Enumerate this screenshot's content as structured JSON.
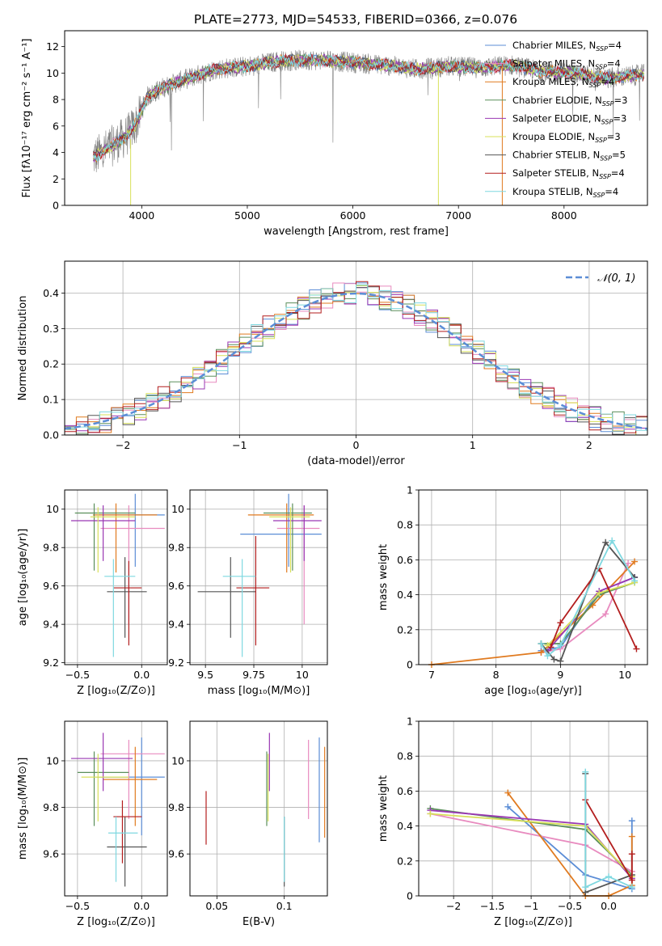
{
  "figure_title": "PLATE=2773, MJD=54533, FIBERID=0366, z=0.076",
  "models": [
    {
      "name": "Chabrier MILES",
      "nssp": "4",
      "color": "#5b8dd6"
    },
    {
      "name": "Salpeter MILES",
      "nssp": "4",
      "color": "#e88bbf"
    },
    {
      "name": "Kroupa MILES",
      "nssp": "4",
      "color": "#e07a1f"
    },
    {
      "name": "Chabrier ELODIE",
      "nssp": "3",
      "color": "#5b8f5b"
    },
    {
      "name": "Salpeter ELODIE",
      "nssp": "3",
      "color": "#9a37b3"
    },
    {
      "name": "Kroupa ELODIE",
      "nssp": "3",
      "color": "#d8e05a"
    },
    {
      "name": "Chabrier STELIB",
      "nssp": "5",
      "color": "#555555"
    },
    {
      "name": "Salpeter STELIB",
      "nssp": "4",
      "color": "#b31e1e"
    },
    {
      "name": "Kroupa STELIB",
      "nssp": "4",
      "color": "#7fd8e0"
    }
  ],
  "chart_data": [
    {
      "id": "spectrum",
      "type": "line",
      "xlabel": "wavelength [Angstrom, rest frame]",
      "ylabel": "Flux [fλ10⁻¹⁷ erg cm⁻² s⁻¹ A⁻¹]",
      "xlim": [
        3270,
        8790
      ],
      "ylim": [
        0,
        13.2
      ],
      "xticks": [
        4000,
        5000,
        6000,
        7000,
        8000
      ],
      "yticks": [
        0,
        2,
        4,
        6,
        8,
        10,
        12
      ],
      "legend_position": "right",
      "continuum": [
        [
          3540,
          3.6
        ],
        [
          3700,
          4.4
        ],
        [
          3850,
          5.2
        ],
        [
          3950,
          6.2
        ],
        [
          4050,
          8.2
        ],
        [
          4200,
          8.9
        ],
        [
          4400,
          9.5
        ],
        [
          4700,
          10.3
        ],
        [
          5000,
          10.5
        ],
        [
          5300,
          10.9
        ],
        [
          5600,
          11.0
        ],
        [
          6000,
          10.8
        ],
        [
          6300,
          10.6
        ],
        [
          6600,
          10.3
        ],
        [
          6900,
          10.5
        ],
        [
          7200,
          10.4
        ],
        [
          7500,
          10.6
        ],
        [
          7800,
          10.1
        ],
        [
          8100,
          10.0
        ],
        [
          8400,
          9.6
        ],
        [
          8760,
          9.9
        ]
      ]
    },
    {
      "id": "residuals",
      "type": "histogram",
      "xlabel": "(data-model)/error",
      "ylabel": "Normed distribution",
      "xlim": [
        -2.5,
        2.5
      ],
      "ylim": [
        0,
        0.49
      ],
      "xticks": [
        -2,
        -1,
        0,
        1,
        2
      ],
      "yticks": [
        0.0,
        0.1,
        0.2,
        0.3,
        0.4
      ],
      "legend": "𝒩(0, 1)",
      "legend_position": "top-right",
      "bin_width": 0.1,
      "reference": {
        "type": "gaussian",
        "mean": 0,
        "sigma": 1
      }
    },
    {
      "id": "z_age",
      "type": "errorbar",
      "xlabel": "Z [log₁₀(Z/Z⊙)]",
      "ylabel": "age  [log₁₀(age/yr)]",
      "xlim": [
        -0.6,
        0.2
      ],
      "ylim": [
        9.19,
        10.1
      ],
      "xticks": [
        -0.5,
        0.0
      ],
      "yticks": [
        9.2,
        9.4,
        9.6,
        9.8,
        10.0
      ],
      "points": [
        {
          "x": -0.05,
          "xlo": -0.35,
          "xhi": 0.18,
          "y": 9.97,
          "ylo": 9.7,
          "yhi": 10.08
        },
        {
          "x": -0.1,
          "xlo": -0.32,
          "xhi": 0.18,
          "y": 9.9,
          "ylo": 9.4,
          "yhi": 10.02
        },
        {
          "x": -0.2,
          "xlo": -0.38,
          "xhi": 0.12,
          "y": 9.97,
          "ylo": 9.67,
          "yhi": 10.03
        },
        {
          "x": -0.37,
          "xlo": -0.52,
          "xhi": -0.05,
          "y": 9.98,
          "ylo": 9.68,
          "yhi": 10.03
        },
        {
          "x": -0.3,
          "xlo": -0.55,
          "xhi": -0.05,
          "y": 9.94,
          "ylo": 9.73,
          "yhi": 10.02
        },
        {
          "x": -0.34,
          "xlo": -0.4,
          "xhi": -0.05,
          "y": 9.96,
          "ylo": 9.67,
          "yhi": 10.01
        },
        {
          "x": -0.13,
          "xlo": -0.27,
          "xhi": 0.04,
          "y": 9.57,
          "ylo": 9.33,
          "yhi": 9.75
        },
        {
          "x": -0.1,
          "xlo": -0.22,
          "xhi": 0.0,
          "y": 9.59,
          "ylo": 9.29,
          "yhi": 9.73
        },
        {
          "x": -0.22,
          "xlo": -0.29,
          "xhi": -0.05,
          "y": 9.65,
          "ylo": 9.23,
          "yhi": 9.74
        }
      ]
    },
    {
      "id": "mass_age",
      "type": "errorbar",
      "xlabel": "mass [log₁₀(M/M⊙)]",
      "ylabel": "",
      "xlim": [
        9.42,
        10.13
      ],
      "ylim": [
        9.19,
        10.1
      ],
      "xticks": [
        9.5,
        9.75,
        10.0
      ],
      "yticks": [
        9.2,
        9.4,
        9.6,
        9.8,
        10.0
      ],
      "points": [
        {
          "x": 9.93,
          "xlo": 9.68,
          "xhi": 10.1,
          "y": 9.87,
          "ylo": 9.7,
          "yhi": 10.08
        },
        {
          "x": 10.01,
          "xlo": 9.87,
          "xhi": 10.09,
          "y": 9.9,
          "ylo": 9.4,
          "yhi": 10.02
        },
        {
          "x": 9.92,
          "xlo": 9.72,
          "xhi": 10.06,
          "y": 9.97,
          "ylo": 9.67,
          "yhi": 10.03
        },
        {
          "x": 9.95,
          "xlo": 9.8,
          "xhi": 10.05,
          "y": 9.98,
          "ylo": 9.68,
          "yhi": 10.03
        },
        {
          "x": 10.01,
          "xlo": 9.85,
          "xhi": 10.1,
          "y": 9.94,
          "ylo": 9.73,
          "yhi": 10.02
        },
        {
          "x": 9.94,
          "xlo": 9.83,
          "xhi": 10.04,
          "y": 9.96,
          "ylo": 9.67,
          "yhi": 10.01
        },
        {
          "x": 9.63,
          "xlo": 9.46,
          "xhi": 9.76,
          "y": 9.57,
          "ylo": 9.33,
          "yhi": 9.75
        },
        {
          "x": 9.76,
          "xlo": 9.66,
          "xhi": 9.83,
          "y": 9.59,
          "ylo": 9.29,
          "yhi": 9.86
        },
        {
          "x": 9.69,
          "xlo": 9.59,
          "xhi": 9.76,
          "y": 9.65,
          "ylo": 9.23,
          "yhi": 9.74
        }
      ]
    },
    {
      "id": "weight_age",
      "type": "line",
      "xlabel": "age  [log₁₀(age/yr)]",
      "ylabel": "mass weight",
      "xlim": [
        6.8,
        10.35
      ],
      "ylim": [
        0,
        1.0
      ],
      "xticks": [
        7,
        8,
        9,
        10
      ],
      "yticks": [
        0.0,
        0.2,
        0.4,
        0.6,
        0.8,
        1.0
      ],
      "series": [
        {
          "x": [
            8.7,
            9.0,
            9.6,
            10.15
          ],
          "y": [
            0.08,
            0.1,
            0.42,
            0.5
          ]
        },
        {
          "x": [
            8.7,
            9.0,
            9.7,
            10.05
          ],
          "y": [
            0.07,
            0.09,
            0.29,
            0.58
          ]
        },
        {
          "x": [
            7.0,
            8.7,
            9.5,
            10.15
          ],
          "y": [
            0.0,
            0.07,
            0.34,
            0.59
          ]
        },
        {
          "x": [
            8.7,
            9.0,
            9.6,
            10.15
          ],
          "y": [
            0.12,
            0.12,
            0.4,
            0.47
          ]
        },
        {
          "x": [
            8.8,
            9.6,
            10.15
          ],
          "y": [
            0.08,
            0.42,
            0.5
          ]
        },
        {
          "x": [
            8.8,
            9.6,
            10.15
          ],
          "y": [
            0.11,
            0.41,
            0.47
          ]
        },
        {
          "x": [
            8.7,
            8.9,
            9.0,
            9.7,
            10.15
          ],
          "y": [
            0.12,
            0.03,
            0.02,
            0.7,
            0.5
          ]
        },
        {
          "x": [
            8.85,
            9.0,
            9.6,
            10.18
          ],
          "y": [
            0.1,
            0.24,
            0.55,
            0.09
          ]
        },
        {
          "x": [
            8.7,
            8.8,
            9.0,
            9.8,
            10.15
          ],
          "y": [
            0.12,
            0.05,
            0.11,
            0.71,
            0.48
          ]
        }
      ]
    },
    {
      "id": "z_mass",
      "type": "errorbar",
      "xlabel": "Z [log₁₀(Z/Z⊙)]",
      "ylabel": "mass [log₁₀(M/M⊙)]",
      "xlim": [
        -0.6,
        0.2
      ],
      "ylim": [
        9.42,
        10.17
      ],
      "xticks": [
        -0.5,
        0.0
      ],
      "yticks": [
        9.6,
        9.8,
        10.0
      ],
      "points": [
        {
          "x": 0.0,
          "xlo": -0.35,
          "xhi": 0.18,
          "y": 9.93,
          "ylo": 9.68,
          "yhi": 10.1
        },
        {
          "x": -0.1,
          "xlo": -0.32,
          "xhi": 0.18,
          "y": 10.03,
          "ylo": 9.75,
          "yhi": 10.09
        },
        {
          "x": -0.05,
          "xlo": -0.3,
          "xhi": 0.12,
          "y": 9.92,
          "ylo": 9.72,
          "yhi": 10.06
        },
        {
          "x": -0.37,
          "xlo": -0.5,
          "xhi": -0.1,
          "y": 9.95,
          "ylo": 9.72,
          "yhi": 10.04
        },
        {
          "x": -0.3,
          "xlo": -0.55,
          "xhi": -0.07,
          "y": 10.01,
          "ylo": 9.87,
          "yhi": 10.12
        },
        {
          "x": -0.34,
          "xlo": -0.47,
          "xhi": -0.1,
          "y": 9.93,
          "ylo": 9.74,
          "yhi": 10.03
        },
        {
          "x": -0.13,
          "xlo": -0.27,
          "xhi": 0.04,
          "y": 9.63,
          "ylo": 9.46,
          "yhi": 9.76
        },
        {
          "x": -0.15,
          "xlo": -0.22,
          "xhi": 0.0,
          "y": 9.76,
          "ylo": 9.56,
          "yhi": 9.83
        },
        {
          "x": -0.2,
          "xlo": -0.26,
          "xhi": -0.03,
          "y": 9.69,
          "ylo": 9.48,
          "yhi": 9.76
        }
      ]
    },
    {
      "id": "ebv_mass",
      "type": "errorbar",
      "xlabel": "E(B-V)",
      "ylabel": "",
      "xlim": [
        0.03,
        0.132
      ],
      "ylim": [
        9.42,
        10.17
      ],
      "xticks": [
        0.05,
        0.1
      ],
      "yticks": [
        9.6,
        9.8,
        10.0
      ],
      "points": [
        {
          "x": 0.126,
          "ylo": 9.65,
          "yhi": 10.1
        },
        {
          "x": 0.118,
          "ylo": 9.75,
          "yhi": 10.09
        },
        {
          "x": 0.13,
          "ylo": 9.67,
          "yhi": 10.06
        },
        {
          "x": 0.087,
          "ylo": 9.72,
          "yhi": 10.04
        },
        {
          "x": 0.089,
          "ylo": 9.87,
          "yhi": 10.12
        },
        {
          "x": 0.088,
          "ylo": 9.74,
          "yhi": 10.03
        },
        {
          "x": 0.1,
          "ylo": 9.46,
          "yhi": 9.76
        },
        {
          "x": 0.042,
          "ylo": 9.64,
          "yhi": 9.87
        },
        {
          "x": 0.1,
          "ylo": 9.48,
          "yhi": 9.76
        }
      ]
    },
    {
      "id": "weight_z",
      "type": "line",
      "xlabel": "Z [log₁₀(Z/Z⊙)]",
      "ylabel": "mass weight",
      "xlim": [
        -2.45,
        0.5
      ],
      "ylim": [
        0,
        1.0
      ],
      "xticks": [
        -2.0,
        -1.5,
        -1.0,
        -0.5,
        0.0
      ],
      "yticks": [
        0.0,
        0.2,
        0.4,
        0.6,
        0.8,
        1.0
      ],
      "series": [
        {
          "x": [
            -1.3,
            -0.3,
            0.3,
            0.3
          ],
          "y": [
            0.51,
            0.12,
            0.04,
            0.43
          ]
        },
        {
          "x": [
            -2.3,
            -0.3,
            0.3
          ],
          "y": [
            0.47,
            0.29,
            0.14
          ]
        },
        {
          "x": [
            -1.3,
            -0.3,
            0.0,
            0.3,
            0.3
          ],
          "y": [
            0.59,
            0.0,
            0.0,
            0.06,
            0.34
          ]
        },
        {
          "x": [
            -2.3,
            -0.3,
            0.3
          ],
          "y": [
            0.5,
            0.38,
            0.12
          ]
        },
        {
          "x": [
            -2.3,
            -0.3,
            0.3
          ],
          "y": [
            0.49,
            0.41,
            0.1
          ]
        },
        {
          "x": [
            -2.3,
            -0.3,
            0.3
          ],
          "y": [
            0.47,
            0.4,
            0.11
          ]
        },
        {
          "x": [
            -0.3,
            -0.3,
            0.3
          ],
          "y": [
            0.7,
            0.02,
            0.12
          ]
        },
        {
          "x": [
            -0.3,
            0.3,
            0.3
          ],
          "y": [
            0.55,
            0.09,
            0.24
          ]
        },
        {
          "x": [
            -0.3,
            -0.3,
            0.0,
            0.3
          ],
          "y": [
            0.71,
            0.05,
            0.11,
            0.05
          ]
        }
      ]
    }
  ]
}
